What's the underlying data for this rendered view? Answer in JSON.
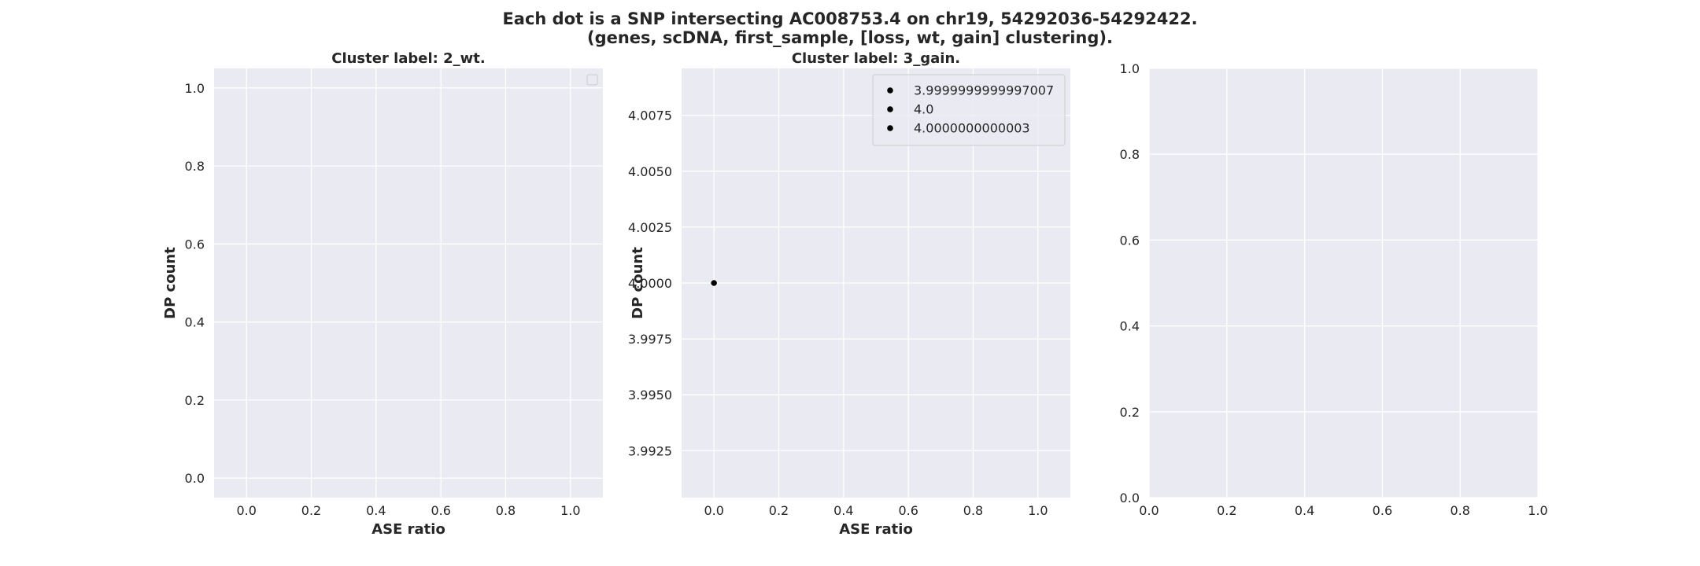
{
  "figure": {
    "title_line1": "Each dot is a SNP intersecting AC008753.4 on chr19, 54292036-54292422.",
    "title_line2": "(genes, scDNA, first_sample, [loss, wt, gain] clustering)."
  },
  "colors": {
    "background": "#eaeaf2",
    "grid": "#ffffff",
    "point": "#000000",
    "text": "#262626"
  },
  "chart_data": [
    {
      "type": "scatter",
      "title": "Cluster label: 2_wt.",
      "xlabel": "ASE ratio",
      "ylabel": "DP count",
      "xlim": [
        -0.1,
        1.1
      ],
      "ylim": [
        -0.05,
        1.05
      ],
      "xticks": [
        0.0,
        0.2,
        0.4,
        0.6,
        0.8,
        1.0
      ],
      "xtick_labels": [
        "0.0",
        "0.2",
        "0.4",
        "0.6",
        "0.8",
        "1.0"
      ],
      "yticks": [
        0.0,
        0.2,
        0.4,
        0.6,
        0.8,
        1.0
      ],
      "ytick_labels": [
        "0.0",
        "0.2",
        "0.4",
        "0.6",
        "0.8",
        "1.0"
      ],
      "grid": true,
      "legend": {
        "placement": "top-right",
        "entries": []
      },
      "series": []
    },
    {
      "type": "scatter",
      "title": "Cluster label: 3_gain.",
      "xlabel": "ASE ratio",
      "ylabel": "DP count",
      "xlim": [
        -0.1,
        1.1
      ],
      "ylim": [
        3.9904,
        4.0096
      ],
      "xticks": [
        0.0,
        0.2,
        0.4,
        0.6,
        0.8,
        1.0
      ],
      "xtick_labels": [
        "0.0",
        "0.2",
        "0.4",
        "0.6",
        "0.8",
        "1.0"
      ],
      "yticks": [
        3.9925,
        3.995,
        3.9975,
        4.0,
        4.0025,
        4.005,
        4.0075
      ],
      "ytick_labels": [
        "3.9925",
        "3.9950",
        "3.9975",
        "4.0000",
        "4.0025",
        "4.0050",
        "4.0075"
      ],
      "grid": true,
      "legend": {
        "placement": "top-right",
        "entries": [
          "3.9999999999997007",
          "4.0",
          "4.0000000000003"
        ]
      },
      "series": [
        {
          "points": [
            {
              "x": 0.0,
              "y": 4.0
            }
          ]
        }
      ]
    },
    {
      "type": "scatter",
      "title": "",
      "xlabel": "",
      "ylabel": "",
      "xlim": [
        0.0,
        1.0
      ],
      "ylim": [
        0.0,
        1.0
      ],
      "xticks": [
        0.0,
        0.2,
        0.4,
        0.6,
        0.8,
        1.0
      ],
      "xtick_labels": [
        "0.0",
        "0.2",
        "0.4",
        "0.6",
        "0.8",
        "1.0"
      ],
      "yticks": [
        0.0,
        0.2,
        0.4,
        0.6,
        0.8,
        1.0
      ],
      "ytick_labels": [
        "0.0",
        "0.2",
        "0.4",
        "0.6",
        "0.8",
        "1.0"
      ],
      "grid": true,
      "legend": null,
      "series": []
    }
  ]
}
